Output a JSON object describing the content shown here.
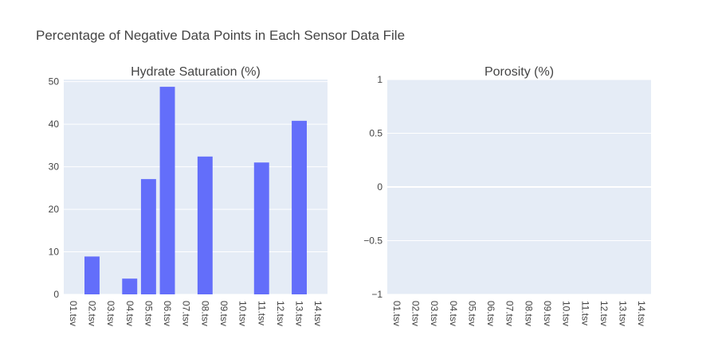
{
  "title": "Percentage of Negative Data Points in Each Sensor Data File",
  "colors": {
    "bar": "#636efa",
    "plot_bg": "#e5ecf6",
    "grid": "#ffffff",
    "text": "#444444"
  },
  "chart_data": [
    {
      "type": "bar",
      "title": "Hydrate Saturation (%)",
      "categories": [
        "01.tsv",
        "02.tsv",
        "03.tsv",
        "04.tsv",
        "05.tsv",
        "06.tsv",
        "07.tsv",
        "08.tsv",
        "09.tsv",
        "10.tsv",
        "11.tsv",
        "12.tsv",
        "13.tsv",
        "14.tsv"
      ],
      "values": [
        0,
        8.9,
        0,
        3.7,
        27.1,
        48.8,
        0,
        32.4,
        0,
        0,
        31.0,
        0,
        40.8,
        0
      ],
      "ylim": [
        0,
        50.5
      ],
      "yticks": [
        0,
        10,
        20,
        30,
        40,
        50
      ],
      "ytick_labels": [
        "0",
        "10",
        "20",
        "30",
        "40",
        "50"
      ],
      "grid": true
    },
    {
      "type": "bar",
      "title": "Porosity (%)",
      "categories": [
        "01.tsv",
        "02.tsv",
        "03.tsv",
        "04.tsv",
        "05.tsv",
        "06.tsv",
        "07.tsv",
        "08.tsv",
        "09.tsv",
        "10.tsv",
        "11.tsv",
        "12.tsv",
        "13.tsv",
        "14.tsv"
      ],
      "values": [
        0,
        0,
        0,
        0,
        0,
        0,
        0,
        0,
        0,
        0,
        0,
        0,
        0,
        0
      ],
      "ylim": [
        -1,
        1
      ],
      "yticks": [
        -1,
        -0.5,
        0,
        0.5,
        1
      ],
      "ytick_labels": [
        "−1",
        "−0.5",
        "0",
        "0.5",
        "1"
      ],
      "grid": true
    }
  ]
}
